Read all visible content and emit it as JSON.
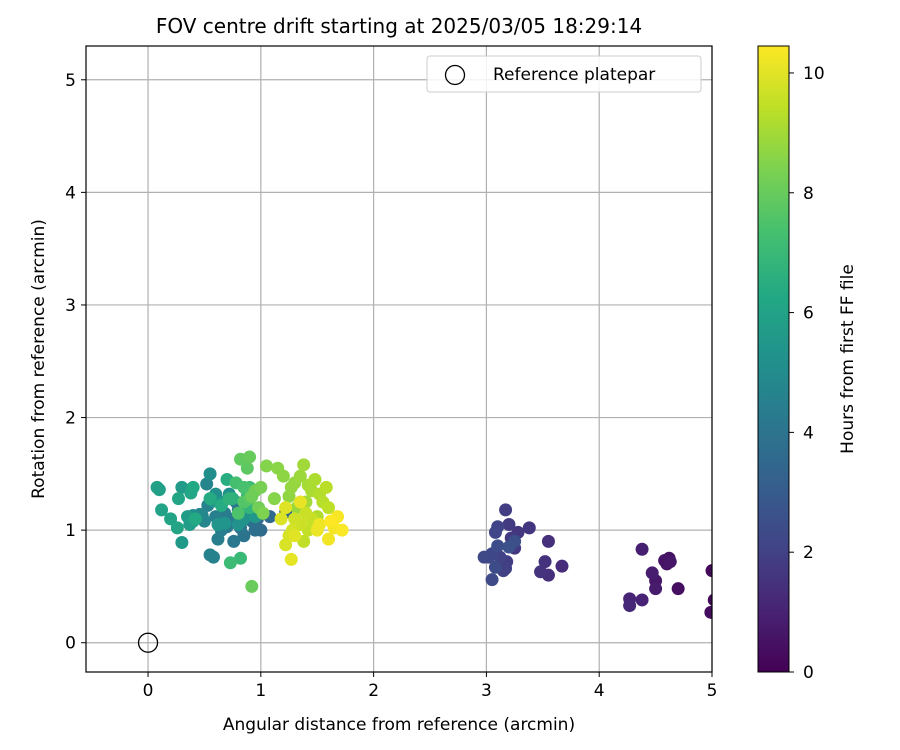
{
  "chart_data": {
    "type": "scatter",
    "title": "FOV centre drift starting at 2025/03/05 18:29:14",
    "xlabel": "Angular distance from reference (arcmin)",
    "ylabel": "Rotation from reference (arcmin)",
    "xlim": [
      -0.55,
      5.0
    ],
    "ylim": [
      -0.26,
      5.3
    ],
    "xticks": [
      "0",
      "1",
      "2",
      "3",
      "4",
      "5"
    ],
    "yticks": [
      "0",
      "1",
      "2",
      "3",
      "4",
      "5"
    ],
    "grid": true,
    "legend": {
      "position": "top-right",
      "entries": [
        "Reference platepar"
      ]
    },
    "colorbar": {
      "label": "Hours from first FF file",
      "colormap": "viridis",
      "range": [
        0,
        10.45
      ],
      "ticks": [
        "0",
        "2",
        "4",
        "6",
        "8",
        "10"
      ]
    },
    "reference_point": {
      "x": 0,
      "y": 0
    },
    "points": [
      [
        5.0,
        0.64,
        0.25
      ],
      [
        5.02,
        0.38,
        0.3
      ],
      [
        4.99,
        0.27,
        0.35
      ],
      [
        4.7,
        0.48,
        0.4
      ],
      [
        4.62,
        0.75,
        0.5
      ],
      [
        4.58,
        0.73,
        0.6
      ],
      [
        4.6,
        0.7,
        0.55
      ],
      [
        4.63,
        0.72,
        0.65
      ],
      [
        4.5,
        0.55,
        0.7
      ],
      [
        4.5,
        0.48,
        0.8
      ],
      [
        4.47,
        0.62,
        0.85
      ],
      [
        4.38,
        0.83,
        0.9
      ],
      [
        4.38,
        0.38,
        1.0
      ],
      [
        4.27,
        0.39,
        1.05
      ],
      [
        4.27,
        0.33,
        1.15
      ],
      [
        3.67,
        0.68,
        1.3
      ],
      [
        3.55,
        0.9,
        1.4
      ],
      [
        3.55,
        0.6,
        1.45
      ],
      [
        3.52,
        0.72,
        1.5
      ],
      [
        3.48,
        0.63,
        1.55
      ],
      [
        3.38,
        1.02,
        1.6
      ],
      [
        3.28,
        0.98,
        1.65
      ],
      [
        3.25,
        0.84,
        1.7
      ],
      [
        3.22,
        0.93,
        1.75
      ],
      [
        3.2,
        1.05,
        1.8
      ],
      [
        3.17,
        1.18,
        1.85
      ],
      [
        3.18,
        0.72,
        1.9
      ],
      [
        3.17,
        0.66,
        1.95
      ],
      [
        3.15,
        0.64,
        2.0
      ],
      [
        3.12,
        0.76,
        2.05
      ],
      [
        3.1,
        1.03,
        2.1
      ],
      [
        3.08,
        0.98,
        2.15
      ],
      [
        3.05,
        0.79,
        2.2
      ],
      [
        3.02,
        0.76,
        2.25
      ],
      [
        2.98,
        0.76,
        2.3
      ],
      [
        3.05,
        0.56,
        2.35
      ],
      [
        3.08,
        0.67,
        2.4
      ],
      [
        3.1,
        0.86,
        2.45
      ],
      [
        3.25,
        0.9,
        2.5
      ],
      [
        3.2,
        0.85,
        2.55
      ],
      [
        1.22,
        1.16,
        3.4
      ],
      [
        1.08,
        1.12,
        3.5
      ],
      [
        1.0,
        1.0,
        3.6
      ],
      [
        0.97,
        1.1,
        3.7
      ],
      [
        0.95,
        1.0,
        3.8
      ],
      [
        0.92,
        1.08,
        3.85
      ],
      [
        0.9,
        1.2,
        3.9
      ],
      [
        0.88,
        1.12,
        3.95
      ],
      [
        0.85,
        0.95,
        4.0
      ],
      [
        0.82,
        1.02,
        4.05
      ],
      [
        0.8,
        1.18,
        4.1
      ],
      [
        0.78,
        1.25,
        4.15
      ],
      [
        0.76,
        0.9,
        4.2
      ],
      [
        0.72,
        1.1,
        4.25
      ],
      [
        0.7,
        1.03,
        4.3
      ],
      [
        0.68,
        1.15,
        4.35
      ],
      [
        0.65,
        1.0,
        4.4
      ],
      [
        0.62,
        0.92,
        4.45
      ],
      [
        0.6,
        1.12,
        4.5
      ],
      [
        0.58,
        0.76,
        4.55
      ],
      [
        0.55,
        0.78,
        4.6
      ],
      [
        0.53,
        1.22,
        4.65
      ],
      [
        0.52,
        1.41,
        4.7
      ],
      [
        0.5,
        1.08,
        4.75
      ],
      [
        0.48,
        1.13,
        4.8
      ],
      [
        0.46,
        1.14,
        4.85
      ],
      [
        0.44,
        1.12,
        4.9
      ],
      [
        0.42,
        1.1,
        4.95
      ],
      [
        0.4,
        1.13,
        5.0
      ],
      [
        0.38,
        1.07,
        5.05
      ],
      [
        0.55,
        1.5,
        5.1
      ],
      [
        0.6,
        1.32,
        5.15
      ],
      [
        0.72,
        1.32,
        5.2
      ],
      [
        0.8,
        1.05,
        5.25
      ],
      [
        0.85,
        1.1,
        5.3
      ],
      [
        0.68,
        1.06,
        5.35
      ],
      [
        0.62,
        1.05,
        5.4
      ],
      [
        0.58,
        1.26,
        5.45
      ],
      [
        0.66,
        1.25,
        5.5
      ],
      [
        0.95,
        1.12,
        5.55
      ],
      [
        0.3,
        0.89,
        5.6
      ],
      [
        0.3,
        1.38,
        5.65
      ],
      [
        0.35,
        1.12,
        5.7
      ],
      [
        0.37,
        1.05,
        5.75
      ],
      [
        0.4,
        1.08,
        5.8
      ],
      [
        0.08,
        1.38,
        5.85
      ],
      [
        0.1,
        1.36,
        5.9
      ],
      [
        0.12,
        1.18,
        6.0
      ],
      [
        0.2,
        1.1,
        6.05
      ],
      [
        0.26,
        1.02,
        6.1
      ],
      [
        0.27,
        1.28,
        6.15
      ],
      [
        0.38,
        1.33,
        6.2
      ],
      [
        0.4,
        1.38,
        6.25
      ],
      [
        0.42,
        1.1,
        6.3
      ],
      [
        0.55,
        1.28,
        6.35
      ],
      [
        0.65,
        1.22,
        6.4
      ],
      [
        0.7,
        1.45,
        6.5
      ],
      [
        0.75,
        1.28,
        6.6
      ],
      [
        0.72,
        1.28,
        6.7
      ],
      [
        0.9,
        1.2,
        6.8
      ],
      [
        0.88,
        1.3,
        6.9
      ],
      [
        0.82,
        0.75,
        7.0
      ],
      [
        0.73,
        0.71,
        7.1
      ],
      [
        0.9,
        1.38,
        7.2
      ],
      [
        0.78,
        1.42,
        7.3
      ],
      [
        0.85,
        1.38,
        7.4
      ],
      [
        0.8,
        1.15,
        7.5
      ],
      [
        0.85,
        1.25,
        7.6
      ],
      [
        0.9,
        1.28,
        7.7
      ],
      [
        0.88,
        1.55,
        7.8
      ],
      [
        0.82,
        1.63,
        7.9
      ],
      [
        0.9,
        1.65,
        8.0
      ],
      [
        0.92,
        0.5,
        8.05
      ],
      [
        0.92,
        1.3,
        8.1
      ],
      [
        0.95,
        1.35,
        8.15
      ],
      [
        0.98,
        1.2,
        8.2
      ],
      [
        1.0,
        1.38,
        8.3
      ],
      [
        1.02,
        1.15,
        8.4
      ],
      [
        1.05,
        1.57,
        8.5
      ],
      [
        1.12,
        1.28,
        8.55
      ],
      [
        1.15,
        1.55,
        8.6
      ],
      [
        1.2,
        1.48,
        8.65
      ],
      [
        1.25,
        1.3,
        8.7
      ],
      [
        1.27,
        1.38,
        8.75
      ],
      [
        1.3,
        1.42,
        8.8
      ],
      [
        1.32,
        1.2,
        8.85
      ],
      [
        1.35,
        1.48,
        8.9
      ],
      [
        1.38,
        1.58,
        8.95
      ],
      [
        1.4,
        1.25,
        9.0
      ],
      [
        1.42,
        1.4,
        9.05
      ],
      [
        1.45,
        1.35,
        9.1
      ],
      [
        1.48,
        1.45,
        9.15
      ],
      [
        1.5,
        1.12,
        9.2
      ],
      [
        1.52,
        1.32,
        9.25
      ],
      [
        1.55,
        1.25,
        9.3
      ],
      [
        1.58,
        1.38,
        9.35
      ],
      [
        1.6,
        1.2,
        9.4
      ],
      [
        1.38,
        0.9,
        9.45
      ],
      [
        1.42,
        1.0,
        9.5
      ],
      [
        1.45,
        1.1,
        9.55
      ],
      [
        1.4,
        1.15,
        9.6
      ],
      [
        1.35,
        1.05,
        9.65
      ],
      [
        1.3,
        1.1,
        9.7
      ],
      [
        1.28,
        1.0,
        9.75
      ],
      [
        1.25,
        0.95,
        9.8
      ],
      [
        1.22,
        0.87,
        9.85
      ],
      [
        1.18,
        1.1,
        9.9
      ],
      [
        1.22,
        1.2,
        9.95
      ],
      [
        1.3,
        0.95,
        10.0
      ],
      [
        1.27,
        0.74,
        10.05
      ],
      [
        1.35,
        1.25,
        10.1
      ],
      [
        1.5,
        1.0,
        10.15
      ],
      [
        1.52,
        1.05,
        10.2
      ],
      [
        1.6,
        0.92,
        10.25
      ],
      [
        1.65,
        1.02,
        10.3
      ],
      [
        1.68,
        1.12,
        10.35
      ],
      [
        1.72,
        1.0,
        10.4
      ],
      [
        1.62,
        1.08,
        10.45
      ]
    ]
  }
}
